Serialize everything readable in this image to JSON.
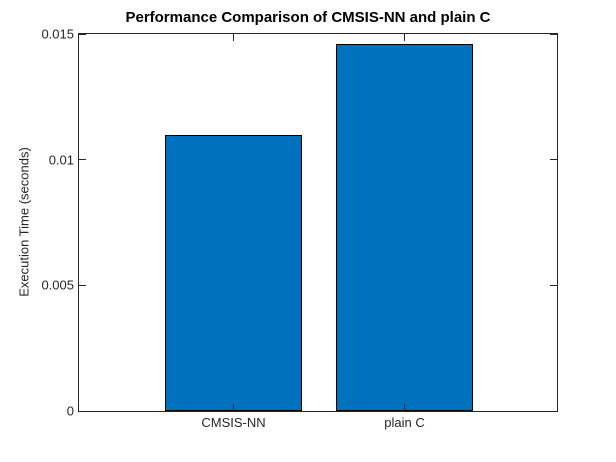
{
  "chart_data": {
    "type": "bar",
    "title": "Performance Comparison of CMSIS-NN and plain C",
    "ylabel": "Execution Time (seconds)",
    "xlabel": "",
    "categories": [
      "CMSIS-NN",
      "plain C"
    ],
    "values": [
      0.011,
      0.0146
    ],
    "ylim": [
      0,
      0.015
    ],
    "yticks": [
      0,
      0.005,
      0.01,
      0.015
    ],
    "ytick_labels": [
      "0",
      "0.005",
      "0.01",
      "0.015"
    ],
    "grid": false,
    "legend": null,
    "colors": {
      "bar_fill": "#0072BD",
      "bar_edge": "#000000",
      "axis": "#262626",
      "title_text": "#000000",
      "background": "#FFFFFF"
    }
  }
}
